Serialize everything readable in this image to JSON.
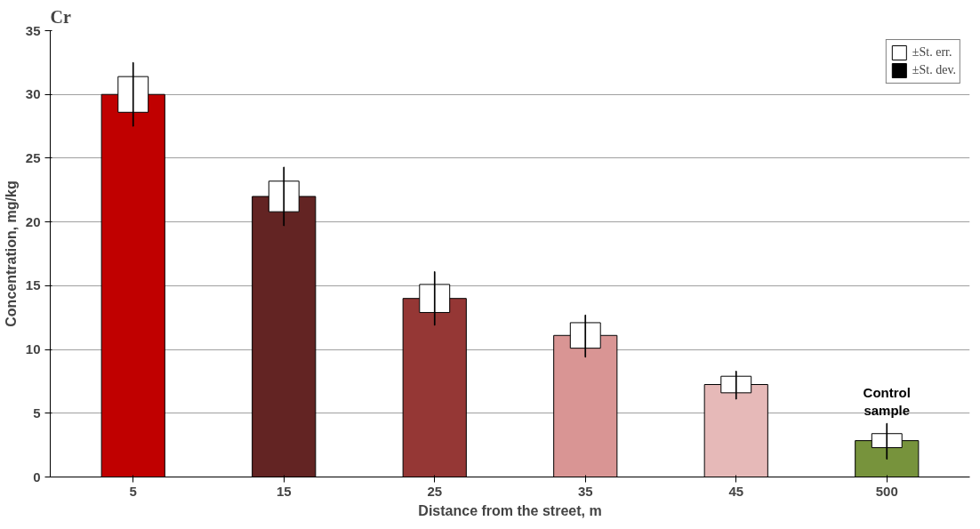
{
  "chart_data": {
    "type": "bar",
    "title": "Cr",
    "xlabel": "Distance from the street, m",
    "ylabel": "Concentration, mg/kg",
    "categories": [
      "5",
      "15",
      "25",
      "35",
      "45",
      "500"
    ],
    "series": [
      {
        "colors": [
          "#c00000",
          "#632423",
          "#953735",
          "#d99594",
          "#e6b9b8",
          "#77933c"
        ],
        "values": [
          30,
          22,
          14,
          11.1,
          7.25,
          2.85
        ]
      },
      {
        "name": "±St. err.",
        "color": "#ffffff",
        "base": [
          28.6,
          20.8,
          12.9,
          10.1,
          6.6,
          2.3
        ],
        "values": [
          2.8,
          2.4,
          2.2,
          2.0,
          1.3,
          1.1
        ]
      },
      {
        "name": "±St. dev.",
        "color": "#000000",
        "base": [
          27.5,
          19.7,
          11.9,
          9.4,
          6.1,
          1.4
        ],
        "values": [
          5.0,
          4.6,
          4.2,
          3.3,
          2.2,
          2.8
        ]
      }
    ],
    "ylim": [
      0,
      35
    ],
    "yticks": [
      0,
      5,
      10,
      15,
      20,
      25,
      30,
      35
    ],
    "grid": "y",
    "legend": "top right",
    "annotations": [
      "Control\nsample"
    ]
  }
}
